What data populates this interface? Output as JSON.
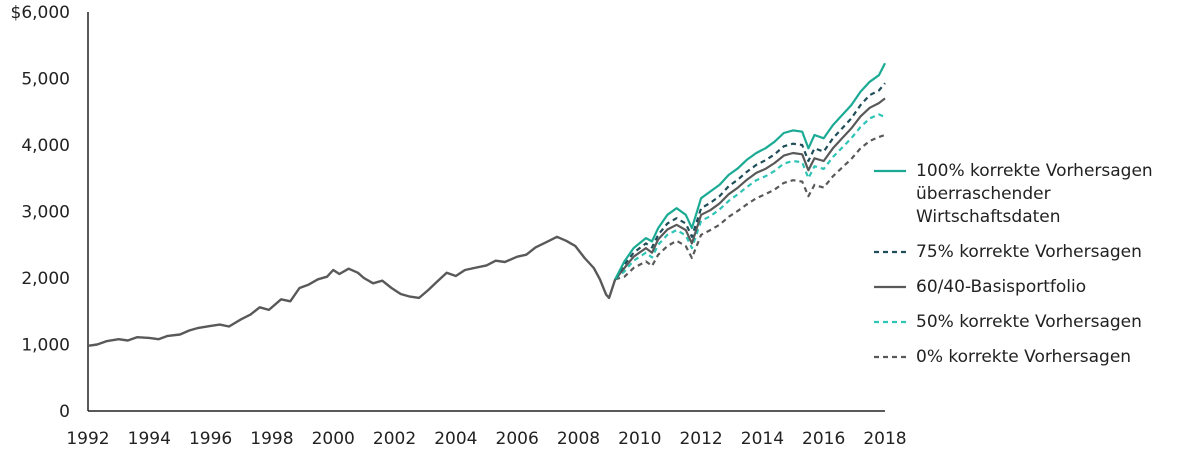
{
  "chart_data": {
    "type": "line",
    "x_ticks": [
      "1992",
      "1994",
      "1996",
      "1998",
      "2000",
      "2002",
      "2004",
      "2006",
      "2008",
      "2010",
      "2012",
      "2014",
      "2016",
      "2018"
    ],
    "y_ticks": [
      "$6,000",
      "5,000",
      "4,000",
      "3,000",
      "2,000",
      "1,000",
      "0"
    ],
    "xlim": [
      1992,
      2018
    ],
    "ylim": [
      0,
      6000
    ],
    "grid": false,
    "legend_position": "right",
    "shared_history": {
      "x": [
        1992.0,
        1992.3,
        1992.6,
        1993.0,
        1993.3,
        1993.6,
        1994.0,
        1994.3,
        1994.6,
        1995.0,
        1995.3,
        1995.6,
        1996.0,
        1996.3,
        1996.6,
        1997.0,
        1997.3,
        1997.6,
        1997.9,
        1998.3,
        1998.6,
        1998.9,
        1999.2,
        1999.5,
        1999.8,
        2000.0,
        2000.2,
        2000.5,
        2000.8,
        2001.0,
        2001.3,
        2001.6,
        2001.9,
        2002.2,
        2002.5,
        2002.8,
        2003.1,
        2003.4,
        2003.7,
        2004.0,
        2004.3,
        2004.6,
        2005.0,
        2005.3,
        2005.6,
        2006.0,
        2006.3,
        2006.6,
        2007.0,
        2007.3,
        2007.6,
        2007.9,
        2008.2,
        2008.5,
        2008.7,
        2008.9,
        2009.0,
        2009.2
      ],
      "y": [
        980,
        1000,
        1050,
        1080,
        1060,
        1110,
        1100,
        1080,
        1130,
        1150,
        1210,
        1250,
        1280,
        1300,
        1270,
        1380,
        1450,
        1560,
        1520,
        1680,
        1650,
        1850,
        1900,
        1980,
        2020,
        2120,
        2060,
        2140,
        2080,
        2000,
        1920,
        1960,
        1850,
        1760,
        1720,
        1700,
        1820,
        1950,
        2080,
        2030,
        2120,
        2150,
        2190,
        2260,
        2240,
        2320,
        2350,
        2460,
        2550,
        2620,
        2560,
        2480,
        2300,
        2150,
        1980,
        1750,
        1700,
        1980
      ]
    },
    "x_split": [
      2009.2,
      2009.5,
      2009.8,
      2010.2,
      2010.4,
      2010.6,
      2010.9,
      2011.2,
      2011.5,
      2011.7,
      2012.0,
      2012.3,
      2012.6,
      2012.9,
      2013.2,
      2013.5,
      2013.8,
      2014.1,
      2014.4,
      2014.7,
      2015.0,
      2015.3,
      2015.5,
      2015.7,
      2016.0,
      2016.3,
      2016.6,
      2016.9,
      2017.2,
      2017.5,
      2017.8,
      2018.0
    ],
    "series": [
      {
        "name": "100% korrekte Vorhersagen überraschender Wirtschaftsdaten",
        "style": "solid",
        "color": "#1bab95",
        "values": [
          1980,
          2250,
          2450,
          2600,
          2550,
          2750,
          2950,
          3050,
          2950,
          2750,
          3200,
          3300,
          3400,
          3550,
          3650,
          3780,
          3880,
          3950,
          4050,
          4180,
          4220,
          4200,
          3950,
          4150,
          4100,
          4300,
          4450,
          4600,
          4800,
          4950,
          5050,
          5230
        ]
      },
      {
        "name": "75% korrekte Vorhersagen",
        "style": "dashed",
        "color": "#1f4e5a",
        "values": [
          1980,
          2200,
          2380,
          2520,
          2460,
          2650,
          2820,
          2900,
          2820,
          2620,
          3050,
          3130,
          3230,
          3380,
          3480,
          3600,
          3700,
          3770,
          3860,
          3980,
          4020,
          4000,
          3760,
          3950,
          3900,
          4100,
          4250,
          4400,
          4600,
          4750,
          4820,
          4930
        ]
      },
      {
        "name": "60/40-Basisportfolio",
        "style": "solid",
        "color": "#595959",
        "values": [
          1980,
          2150,
          2320,
          2450,
          2380,
          2580,
          2730,
          2800,
          2720,
          2520,
          2950,
          3020,
          3120,
          3260,
          3360,
          3480,
          3580,
          3640,
          3730,
          3840,
          3880,
          3860,
          3620,
          3800,
          3760,
          3950,
          4100,
          4250,
          4430,
          4560,
          4630,
          4700
        ]
      },
      {
        "name": "50% korrekte Vorhersagen",
        "style": "dashed",
        "color": "#2ec4b6",
        "values": [
          1980,
          2100,
          2260,
          2380,
          2310,
          2500,
          2650,
          2720,
          2640,
          2450,
          2860,
          2930,
          3030,
          3160,
          3260,
          3370,
          3470,
          3530,
          3610,
          3720,
          3760,
          3740,
          3500,
          3680,
          3640,
          3820,
          3960,
          4100,
          4270,
          4400,
          4460,
          4420
        ]
      },
      {
        "name": "0% korrekte Vorhersagen",
        "style": "dashed",
        "color": "#595959",
        "values": [
          1980,
          2020,
          2150,
          2250,
          2180,
          2350,
          2480,
          2560,
          2480,
          2300,
          2650,
          2720,
          2800,
          2920,
          3010,
          3110,
          3200,
          3260,
          3330,
          3430,
          3470,
          3450,
          3230,
          3400,
          3360,
          3530,
          3660,
          3790,
          3950,
          4060,
          4120,
          4150
        ]
      }
    ]
  }
}
